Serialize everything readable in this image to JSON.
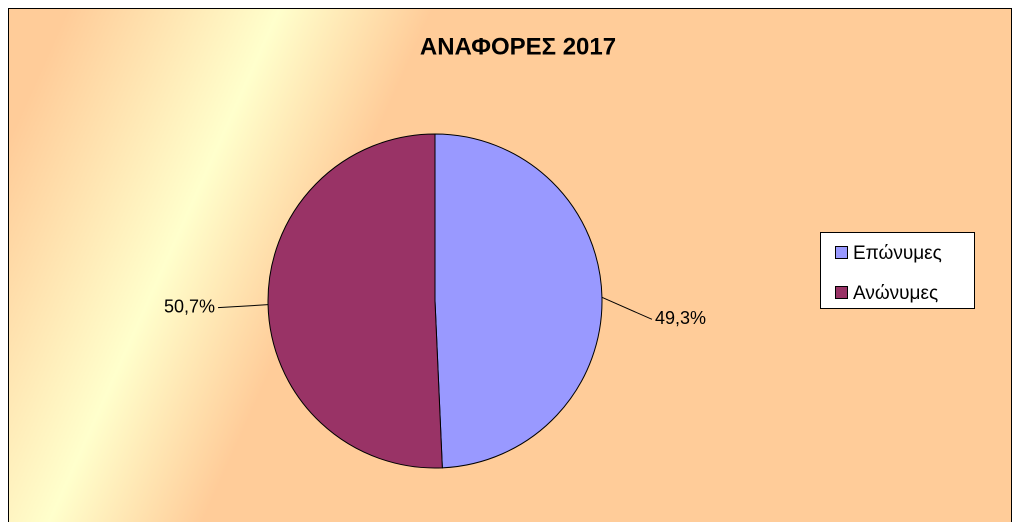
{
  "chart_data": {
    "type": "pie",
    "title": "ΑΝΑΦΟΡΕΣ 2017",
    "categories": [
      "Επώνυμες",
      "Ανώνυμες"
    ],
    "values": [
      49.3,
      50.7
    ],
    "value_labels": [
      "49,3%",
      "50,7%"
    ],
    "colors": [
      "#9999ff",
      "#993366"
    ],
    "legend": "right"
  }
}
